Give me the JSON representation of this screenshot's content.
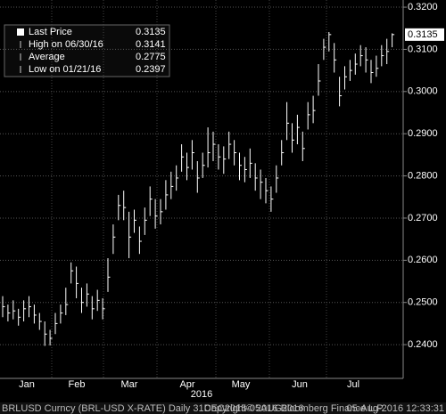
{
  "chart_data": {
    "type": "ohlc",
    "legend": [
      {
        "label": "Last Price",
        "value": 0.3135
      },
      {
        "label": "High on 06/30/16",
        "value": 0.3141
      },
      {
        "label": "Average",
        "value": 0.2775
      },
      {
        "label": "Low on 01/21/16",
        "value": 0.2397
      }
    ],
    "last_label": {
      "value": 0.3135,
      "label": "0.3135"
    },
    "month_labels": [
      "Jan",
      "Feb",
      "Mar",
      "Apr",
      "May",
      "Jun",
      "Jul"
    ],
    "x_label": "2016",
    "footer": [
      "BRLUSD Curncy (BRL-USD X-RATE)  Daily 31DEC2015-05AUG2016",
      "Copyright© 2016 Bloomberg Finance L.P.",
      "05-Aug-2016 12:33:31"
    ],
    "ylim": [
      0.232,
      0.3217
    ],
    "yticks": [
      {
        "value": 0.24,
        "label": "0.2400"
      },
      {
        "value": 0.25,
        "label": "0.2500"
      },
      {
        "value": 0.26,
        "label": "0.2600"
      },
      {
        "value": 0.27,
        "label": "0.2700"
      },
      {
        "value": 0.28,
        "label": "0.2800"
      },
      {
        "value": 0.29,
        "label": "0.2900"
      },
      {
        "value": 0.3,
        "label": "0.3000"
      },
      {
        "value": 0.31,
        "label": "0.3100"
      },
      {
        "value": 0.32,
        "label": "0.3200"
      }
    ],
    "grid": true,
    "series": [
      {
        "name": "Last Price",
        "color": "#ffffff",
        "close": [
          0.249,
          0.2475,
          0.248,
          0.2465,
          0.2485,
          0.249,
          0.247,
          0.2455,
          0.2425,
          0.2415,
          0.245,
          0.2475,
          0.2495,
          0.2575,
          0.2545,
          0.25,
          0.252,
          0.2485,
          0.2505,
          0.2485,
          0.256,
          0.2655,
          0.273,
          0.2725,
          0.2655,
          0.2695,
          0.2645,
          0.2695,
          0.2745,
          0.2705,
          0.2715,
          0.2755,
          0.2775,
          0.2795,
          0.2845,
          0.282,
          0.2855,
          0.2795,
          0.2825,
          0.2855,
          0.2875,
          0.2845,
          0.284,
          0.2875,
          0.2855,
          0.2825,
          0.2815,
          0.283,
          0.2795,
          0.2785,
          0.2765,
          0.2745,
          0.2795,
          0.2855,
          0.2925,
          0.2885,
          0.2915,
          0.2865,
          0.2945,
          0.2955,
          0.3025,
          0.3105,
          0.3135,
          0.3075,
          0.299,
          0.3035,
          0.305,
          0.3065,
          0.3085,
          0.3075,
          0.3045,
          0.3055,
          0.3085,
          0.3095,
          0.3135
        ],
        "high": [
          0.2515,
          0.2495,
          0.2505,
          0.2485,
          0.2505,
          0.2515,
          0.2495,
          0.2475,
          0.2455,
          0.2435,
          0.2475,
          0.2495,
          0.2535,
          0.2595,
          0.2585,
          0.2535,
          0.2545,
          0.2515,
          0.253,
          0.251,
          0.2605,
          0.2685,
          0.2755,
          0.2765,
          0.2715,
          0.272,
          0.268,
          0.2725,
          0.2775,
          0.2745,
          0.2745,
          0.279,
          0.281,
          0.2825,
          0.2875,
          0.2855,
          0.2885,
          0.2835,
          0.2855,
          0.2915,
          0.2905,
          0.2875,
          0.287,
          0.2905,
          0.2885,
          0.2855,
          0.2845,
          0.2865,
          0.283,
          0.2815,
          0.2795,
          0.2775,
          0.2825,
          0.2885,
          0.2975,
          0.2925,
          0.2945,
          0.2905,
          0.2975,
          0.299,
          0.3065,
          0.3125,
          0.3141,
          0.3115,
          0.3035,
          0.306,
          0.3075,
          0.309,
          0.311,
          0.3105,
          0.3075,
          0.3085,
          0.311,
          0.3125,
          0.3138
        ],
        "low": [
          0.2465,
          0.2455,
          0.246,
          0.2445,
          0.2455,
          0.2465,
          0.245,
          0.2435,
          0.2397,
          0.2398,
          0.2425,
          0.245,
          0.247,
          0.2545,
          0.251,
          0.2475,
          0.249,
          0.246,
          0.248,
          0.246,
          0.2525,
          0.2615,
          0.2695,
          0.2695,
          0.2605,
          0.2665,
          0.2615,
          0.266,
          0.2705,
          0.2675,
          0.2685,
          0.272,
          0.2745,
          0.2765,
          0.281,
          0.279,
          0.2815,
          0.276,
          0.2795,
          0.282,
          0.2835,
          0.2815,
          0.2805,
          0.284,
          0.2825,
          0.279,
          0.2785,
          0.2795,
          0.2765,
          0.2745,
          0.2735,
          0.2715,
          0.276,
          0.2825,
          0.2885,
          0.2855,
          0.2875,
          0.2835,
          0.291,
          0.2925,
          0.299,
          0.3075,
          0.3095,
          0.3045,
          0.2965,
          0.3005,
          0.3025,
          0.304,
          0.306,
          0.3045,
          0.302,
          0.3035,
          0.306,
          0.3065,
          0.3105
        ]
      }
    ]
  }
}
